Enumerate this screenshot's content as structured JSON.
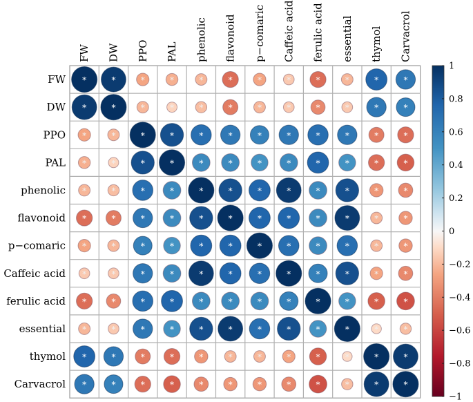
{
  "chart_data": {
    "type": "heatmap",
    "title": "",
    "variables": [
      "FW",
      "DW",
      "PPO",
      "PAL",
      "phenolic",
      "flavonoid",
      "p−comaric",
      "Caffeic acid",
      "ferulic acid",
      "essential",
      "thymol",
      "Carvacrol"
    ],
    "matrix": [
      [
        1.0,
        0.95,
        -0.25,
        -0.22,
        -0.2,
        -0.45,
        -0.25,
        -0.15,
        -0.45,
        -0.2,
        0.75,
        0.65
      ],
      [
        0.95,
        1.0,
        -0.2,
        -0.12,
        -0.18,
        -0.4,
        -0.2,
        -0.15,
        -0.35,
        -0.15,
        0.65,
        0.6
      ],
      [
        -0.25,
        -0.2,
        1.0,
        0.85,
        0.7,
        0.65,
        0.6,
        0.65,
        0.7,
        0.65,
        -0.4,
        -0.45
      ],
      [
        -0.22,
        -0.12,
        0.85,
        1.0,
        0.55,
        0.55,
        0.5,
        0.55,
        0.75,
        0.5,
        -0.45,
        -0.5
      ],
      [
        -0.2,
        -0.18,
        0.7,
        0.55,
        1.0,
        0.85,
        0.75,
        0.95,
        0.55,
        0.85,
        -0.3,
        -0.35
      ],
      [
        -0.45,
        -0.4,
        0.65,
        0.55,
        0.85,
        1.0,
        0.75,
        0.75,
        0.55,
        0.95,
        -0.2,
        -0.3
      ],
      [
        -0.25,
        -0.2,
        0.6,
        0.5,
        0.75,
        0.75,
        1.0,
        0.7,
        0.55,
        0.7,
        -0.2,
        -0.3
      ],
      [
        -0.15,
        -0.15,
        0.65,
        0.55,
        0.95,
        0.75,
        0.7,
        1.0,
        0.6,
        0.85,
        -0.25,
        -0.35
      ],
      [
        -0.45,
        -0.35,
        0.7,
        0.75,
        0.55,
        0.55,
        0.55,
        0.6,
        1.0,
        0.5,
        -0.5,
        -0.55
      ],
      [
        -0.2,
        -0.15,
        0.65,
        0.5,
        0.85,
        0.95,
        0.7,
        0.85,
        0.5,
        1.0,
        -0.1,
        -0.18
      ],
      [
        0.75,
        0.65,
        -0.4,
        -0.45,
        -0.3,
        -0.2,
        -0.2,
        -0.25,
        -0.5,
        -0.1,
        1.0,
        0.95
      ],
      [
        0.65,
        0.6,
        -0.45,
        -0.5,
        -0.35,
        -0.3,
        -0.3,
        -0.35,
        -0.55,
        -0.18,
        0.95,
        1.0
      ]
    ],
    "marker_symbol": "*",
    "legend": {
      "position": "right",
      "range": [
        -1,
        1
      ],
      "ticks": [
        "1",
        "0.8",
        "0.6",
        "0.4",
        "0.2",
        "0",
        "−0.2",
        "−0.4",
        "−0.6",
        "−0.8",
        "−1"
      ],
      "colors": {
        "low": "#67001F",
        "mid": "#F7F7F7",
        "high": "#053061"
      }
    },
    "grid": true
  }
}
